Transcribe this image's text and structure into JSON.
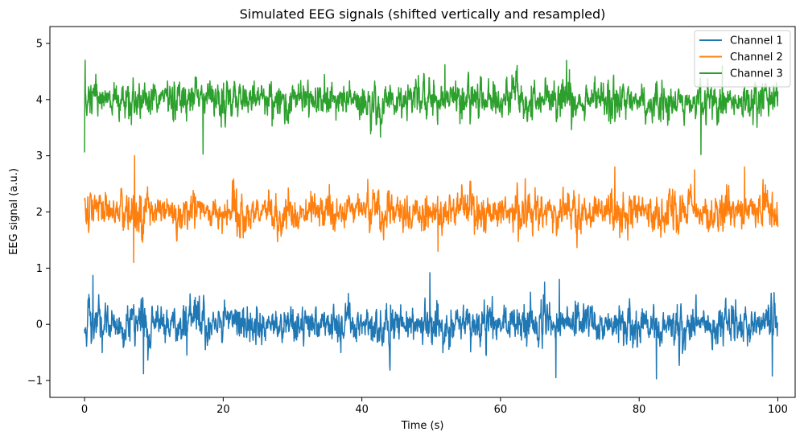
{
  "chart_data": {
    "type": "line",
    "title": "Simulated EEG signals (shifted vertically and resampled)",
    "xlabel": "Time (s)",
    "ylabel": "EEG signal (a.u.)",
    "xlim": [
      -5,
      102.5
    ],
    "ylim": [
      -1.3,
      5.3
    ],
    "x_ticks": [
      0,
      20,
      40,
      60,
      80,
      100
    ],
    "y_ticks": [
      -1,
      0,
      1,
      2,
      3,
      4,
      5
    ],
    "x_tick_labels": [
      "0",
      "20",
      "40",
      "60",
      "80",
      "100"
    ],
    "y_tick_labels": [
      "−1",
      "0",
      "1",
      "2",
      "3",
      "4",
      "5"
    ],
    "grid": false,
    "legend_position": "top-right",
    "x_range": [
      0,
      100
    ],
    "series": [
      {
        "name": "Channel 1",
        "color": "#1f77b4",
        "offset": 0,
        "typical_amplitude": 0.3,
        "min": -0.97,
        "max": 0.92,
        "extremes": [
          [
            1.2,
            0.87
          ],
          [
            8.5,
            -0.88
          ],
          [
            49.8,
            0.92
          ],
          [
            68.0,
            -0.95
          ],
          [
            68.5,
            0.8
          ],
          [
            82.5,
            -0.97
          ],
          [
            99.2,
            -0.92
          ]
        ]
      },
      {
        "name": "Channel 2",
        "color": "#ff7f0e",
        "offset": 2,
        "typical_amplitude": 0.3,
        "min": 1.1,
        "max": 3.0,
        "extremes": [
          [
            7.2,
            3.0
          ],
          [
            7.1,
            1.1
          ],
          [
            51.0,
            1.3
          ],
          [
            76.5,
            2.8
          ],
          [
            88.0,
            2.75
          ],
          [
            95.2,
            2.8
          ]
        ]
      },
      {
        "name": "Channel 3",
        "color": "#2ca02c",
        "offset": 4,
        "typical_amplitude": 0.3,
        "min": 3.02,
        "max": 4.72,
        "extremes": [
          [
            0.0,
            3.06
          ],
          [
            0.1,
            4.7
          ],
          [
            17.1,
            3.03
          ],
          [
            52.0,
            4.62
          ],
          [
            88.9,
            3.02
          ],
          [
            92.0,
            4.6
          ]
        ]
      }
    ]
  }
}
